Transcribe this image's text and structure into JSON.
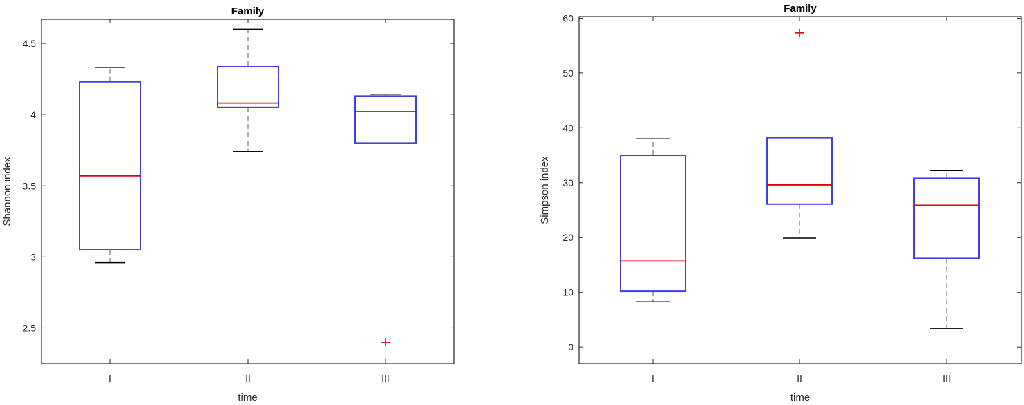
{
  "chart_data": [
    {
      "type": "box",
      "title": "Family",
      "xlabel": "time",
      "ylabel": "Shannon index",
      "categories": [
        "I",
        "II",
        "III"
      ],
      "ylim": [
        2.25,
        4.67
      ],
      "yticks": [
        2.5,
        3,
        3.5,
        4,
        4.5
      ],
      "grid": false,
      "boxes": [
        {
          "category": "I",
          "whisker_low": 2.96,
          "q1": 3.05,
          "median": 3.57,
          "q3": 4.23,
          "whisker_high": 4.33,
          "outliers": []
        },
        {
          "category": "II",
          "whisker_low": 3.74,
          "q1": 4.05,
          "median": 4.08,
          "q3": 4.34,
          "whisker_high": 4.6,
          "outliers": []
        },
        {
          "category": "III",
          "whisker_low": 3.8,
          "q1": 3.8,
          "median": 4.02,
          "q3": 4.13,
          "whisker_high": 4.14,
          "outliers": [
            2.4
          ]
        }
      ],
      "colors": {
        "box": "#4040e0",
        "median": "#e00000",
        "whisker": "#808080",
        "cap": "#000000",
        "outlier": "#e00000"
      }
    },
    {
      "type": "box",
      "title": "Family",
      "xlabel": "time",
      "ylabel": "Simpson index",
      "categories": [
        "I",
        "II",
        "III"
      ],
      "ylim": [
        -3,
        60.3
      ],
      "yticks": [
        0,
        10,
        20,
        30,
        40,
        50,
        60
      ],
      "grid": false,
      "boxes": [
        {
          "category": "I",
          "whisker_low": 8.3,
          "q1": 10.2,
          "median": 15.7,
          "q3": 35.0,
          "whisker_high": 38.0,
          "outliers": []
        },
        {
          "category": "II",
          "whisker_low": 19.9,
          "q1": 26.1,
          "median": 29.6,
          "q3": 38.2,
          "whisker_high": 38.3,
          "outliers": [
            57.3
          ]
        },
        {
          "category": "III",
          "whisker_low": 3.4,
          "q1": 16.2,
          "median": 25.9,
          "q3": 30.8,
          "whisker_high": 32.2,
          "outliers": []
        }
      ],
      "colors": {
        "box": "#4040e0",
        "median": "#e00000",
        "whisker": "#808080",
        "cap": "#000000",
        "outlier": "#e00000"
      }
    }
  ]
}
